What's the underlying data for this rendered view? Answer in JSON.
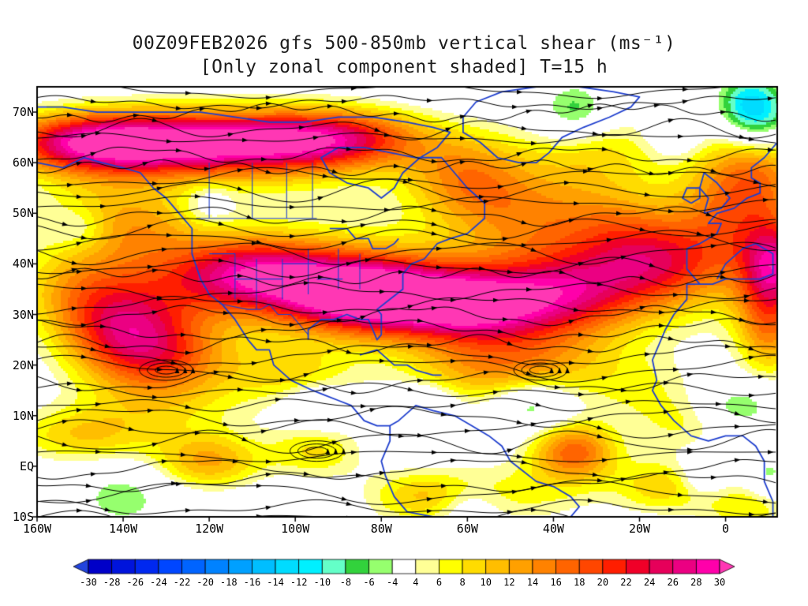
{
  "title": {
    "line1": "00Z09FEB2026 gfs 500-850mb vertical shear (ms⁻¹)",
    "line2": "[Only zonal component shaded] T=15 h"
  },
  "chart_data": {
    "type": "heatmap",
    "title": "00Z09FEB2026 gfs 500-850mb vertical shear (ms⁻¹)",
    "subtitle": "[Only zonal component shaded] T=15 h",
    "field": "500-850mb vertical shear, zonal component, ms⁻¹",
    "forecast_hour": "T=15 h",
    "lon_range": [
      -160,
      12
    ],
    "lat_range": [
      -10,
      75
    ],
    "x_tick_values": [
      -160,
      -140,
      -120,
      -100,
      -80,
      -60,
      -40,
      -20,
      0
    ],
    "x_tick_labels": [
      "160W",
      "140W",
      "120W",
      "100W",
      "80W",
      "60W",
      "40W",
      "20W",
      "0"
    ],
    "y_tick_values": [
      70,
      60,
      50,
      40,
      30,
      20,
      10,
      0,
      -10
    ],
    "y_tick_labels": [
      "70N",
      "60N",
      "50N",
      "40N",
      "30N",
      "20N",
      "10N",
      "EQ",
      "10S"
    ],
    "colorbar": {
      "levels": [
        -30,
        -28,
        -26,
        -24,
        -22,
        -20,
        -18,
        -16,
        -14,
        -12,
        -10,
        -8,
        -6,
        -4,
        4,
        6,
        8,
        10,
        12,
        14,
        16,
        18,
        20,
        22,
        24,
        26,
        28,
        30
      ],
      "segment_colors": [
        "#0000c8",
        "#0014dc",
        "#0028f0",
        "#0046ff",
        "#0064ff",
        "#0082ff",
        "#00a0ff",
        "#00beff",
        "#00dcff",
        "#00f0ff",
        "#64ffc8",
        "#32d23c",
        "#96ff6e",
        "#ffffff",
        "#ffff96",
        "#ffff00",
        "#ffdc00",
        "#ffbe00",
        "#ffa000",
        "#ff8200",
        "#ff6400",
        "#ff4600",
        "#ff1e00",
        "#f00028",
        "#e6005a",
        "#eb0082",
        "#ff00aa"
      ],
      "under_color": "#2244dd",
      "over_color": "#ff37b4"
    },
    "streamline_color": "#000000",
    "coastline_color": "#1f3fce",
    "border_color": "#000000",
    "features": [
      [
        -148,
        64,
        18,
        14,
        4
      ],
      [
        -120,
        64,
        20,
        22,
        4
      ],
      [
        -90,
        65,
        14,
        14,
        4
      ],
      [
        -118,
        63,
        12,
        30,
        6
      ],
      [
        -60,
        57,
        12,
        10,
        6
      ],
      [
        -30,
        62,
        8,
        12,
        6
      ],
      [
        2,
        50,
        14,
        10,
        9
      ],
      [
        8,
        60,
        10,
        8,
        6
      ],
      [
        -110,
        38,
        22,
        14,
        5
      ],
      [
        -85,
        34,
        28,
        13,
        5
      ],
      [
        -60,
        32,
        26,
        14,
        5
      ],
      [
        -35,
        35,
        16,
        12,
        6
      ],
      [
        -15,
        40,
        14,
        10,
        6
      ],
      [
        -75,
        36,
        8,
        55,
        10
      ],
      [
        -140,
        27,
        12,
        10,
        6
      ],
      [
        -150,
        35,
        8,
        10,
        6
      ],
      [
        -135,
        28,
        8,
        12,
        8
      ],
      [
        -130,
        21,
        10,
        12,
        5
      ],
      [
        -45,
        21,
        9,
        14,
        5
      ],
      [
        -100,
        18,
        7,
        10,
        4
      ],
      [
        -150,
        6,
        9,
        12,
        4
      ],
      [
        -120,
        1,
        12,
        9,
        4
      ],
      [
        -95,
        3,
        8,
        8,
        4
      ],
      [
        -70,
        -6,
        10,
        10,
        4
      ],
      [
        -35,
        3,
        16,
        7,
        4
      ],
      [
        -15,
        -4,
        9,
        8,
        4
      ],
      [
        5,
        -8,
        8,
        8,
        4
      ],
      [
        10,
        35,
        10,
        6,
        8
      ],
      [
        10,
        25,
        8,
        5,
        6
      ],
      [
        12,
        40,
        14,
        5,
        6
      ],
      [
        -145,
        50,
        6,
        12,
        6
      ],
      [
        -135,
        47,
        6,
        10,
        5
      ],
      [
        -45,
        50,
        9,
        12,
        6
      ],
      [
        -25,
        47,
        8,
        10,
        6
      ],
      [
        -130,
        12,
        6,
        15,
        5
      ],
      [
        -60,
        18,
        6,
        12,
        5
      ],
      [
        -20,
        15,
        5,
        10,
        5
      ],
      [
        -45,
        -5,
        6,
        12,
        5
      ],
      [
        -10,
        8,
        5,
        8,
        4
      ],
      [
        -45,
        12,
        -8,
        6,
        3
      ],
      [
        -95,
        12,
        -6,
        5,
        3
      ],
      [
        -70,
        13,
        -5,
        5,
        2.5
      ],
      [
        3,
        12,
        -7,
        6,
        3
      ],
      [
        -35,
        70,
        -9,
        6,
        4
      ],
      [
        -12,
        66,
        -6,
        4,
        3
      ],
      [
        8,
        68,
        -11,
        6,
        5
      ],
      [
        5,
        72,
        -8,
        5,
        4
      ],
      [
        -140,
        -6,
        -6,
        7,
        4
      ],
      [
        -60,
        -8,
        -5,
        5,
        3
      ],
      [
        -5,
        -2,
        -5,
        4,
        3
      ],
      [
        -150,
        47,
        -5,
        5,
        3
      ],
      [
        -120,
        52,
        -4,
        4,
        3
      ],
      [
        10,
        -2,
        -6,
        4,
        3
      ]
    ],
    "vortices": [
      [
        -130,
        19
      ],
      [
        -43,
        19
      ],
      [
        -95,
        3
      ]
    ],
    "coastlines": {
      "na_pacific": [
        [
          -166,
          62
        ],
        [
          -160,
          60
        ],
        [
          -154,
          59
        ],
        [
          -149,
          61
        ],
        [
          -145,
          60
        ],
        [
          -140,
          59
        ],
        [
          -136,
          58
        ],
        [
          -133,
          55
        ],
        [
          -130,
          53
        ],
        [
          -127,
          50
        ],
        [
          -124,
          47
        ],
        [
          -124,
          42
        ],
        [
          -122,
          37
        ],
        [
          -120,
          34
        ],
        [
          -117,
          32
        ],
        [
          -114,
          29
        ],
        [
          -111,
          25
        ],
        [
          -109,
          23
        ],
        [
          -106,
          23
        ],
        [
          -105,
          20
        ],
        [
          -101,
          17
        ],
        [
          -96,
          15
        ],
        [
          -93,
          14
        ],
        [
          -90,
          13
        ],
        [
          -87,
          12
        ],
        [
          -84,
          9
        ],
        [
          -81,
          8
        ],
        [
          -78,
          8
        ]
      ],
      "na_atlantic": [
        [
          -97,
          25
        ],
        [
          -97,
          27
        ],
        [
          -94,
          29
        ],
        [
          -91,
          29
        ],
        [
          -88,
          30
        ],
        [
          -85,
          29
        ],
        [
          -83,
          29
        ],
        [
          -82,
          27
        ],
        [
          -81,
          25
        ],
        [
          -80,
          26
        ],
        [
          -80,
          30
        ],
        [
          -81,
          31
        ],
        [
          -78,
          33
        ],
        [
          -75,
          35
        ],
        [
          -75,
          38
        ],
        [
          -73,
          40
        ],
        [
          -70,
          41
        ],
        [
          -67,
          44
        ],
        [
          -64,
          45
        ],
        [
          -60,
          46
        ],
        [
          -56,
          49
        ],
        [
          -56,
          52
        ],
        [
          -60,
          55
        ],
        [
          -63,
          58
        ],
        [
          -66,
          61
        ],
        [
          -72,
          61
        ],
        [
          -78,
          62
        ],
        [
          -84,
          63
        ],
        [
          -90,
          63
        ],
        [
          -94,
          61
        ],
        [
          -92,
          58
        ],
        [
          -88,
          56
        ],
        [
          -83,
          55
        ],
        [
          -80,
          53
        ],
        [
          -77,
          55
        ],
        [
          -75,
          58
        ],
        [
          -71,
          61
        ],
        [
          -67,
          63
        ],
        [
          -64,
          66
        ],
        [
          -68,
          67
        ],
        [
          -74,
          68
        ],
        [
          -82,
          69
        ],
        [
          -90,
          69
        ],
        [
          -98,
          68
        ],
        [
          -106,
          68
        ],
        [
          -114,
          69
        ],
        [
          -122,
          70
        ],
        [
          -130,
          70
        ],
        [
          -138,
          70
        ],
        [
          -146,
          70
        ],
        [
          -154,
          71
        ],
        [
          -160,
          71
        ]
      ],
      "great_lakes": [
        [
          -92,
          47
        ],
        [
          -88,
          47
        ],
        [
          -86,
          45
        ],
        [
          -83,
          45
        ],
        [
          -82,
          43
        ],
        [
          -79,
          43
        ],
        [
          -77,
          44
        ],
        [
          -76,
          45
        ]
      ],
      "greenland": [
        [
          -57,
          64
        ],
        [
          -53,
          61
        ],
        [
          -48,
          60
        ],
        [
          -44,
          60
        ],
        [
          -41,
          62
        ],
        [
          -38,
          65
        ],
        [
          -33,
          67
        ],
        [
          -27,
          69
        ],
        [
          -22,
          71
        ],
        [
          -20,
          73
        ],
        [
          -26,
          74
        ],
        [
          -34,
          75
        ],
        [
          -44,
          75
        ],
        [
          -52,
          74
        ],
        [
          -58,
          72
        ],
        [
          -61,
          69
        ],
        [
          -61,
          66
        ],
        [
          -57,
          64
        ]
      ],
      "cuba_hispaniola": [
        [
          -85,
          22
        ],
        [
          -81,
          23
        ],
        [
          -77,
          20
        ],
        [
          -74,
          20
        ],
        [
          -72,
          19
        ],
        [
          -68,
          18
        ],
        [
          -66,
          18
        ]
      ],
      "south_america": [
        [
          -78,
          8
        ],
        [
          -76,
          9
        ],
        [
          -72,
          12
        ],
        [
          -68,
          11
        ],
        [
          -63,
          10
        ],
        [
          -59,
          8
        ],
        [
          -55,
          6
        ],
        [
          -52,
          4
        ],
        [
          -50,
          1
        ],
        [
          -47,
          -1
        ],
        [
          -44,
          -3
        ],
        [
          -40,
          -4
        ],
        [
          -36,
          -6
        ],
        [
          -34,
          -8
        ],
        [
          -36,
          -10
        ],
        [
          -44,
          -10
        ],
        [
          -52,
          -10
        ],
        [
          -60,
          -10
        ],
        [
          -68,
          -10
        ],
        [
          -74,
          -9
        ],
        [
          -77,
          -6
        ],
        [
          -79,
          -2
        ],
        [
          -80,
          1
        ],
        [
          -78,
          5
        ],
        [
          -78,
          8
        ]
      ],
      "europe_mainland": [
        [
          -9,
          43
        ],
        [
          -6,
          44
        ],
        [
          -2,
          46
        ],
        [
          -1,
          48
        ],
        [
          -4,
          48
        ],
        [
          -2,
          50
        ],
        [
          2,
          51
        ],
        [
          5,
          53
        ],
        [
          8,
          54
        ],
        [
          8,
          56
        ],
        [
          6,
          57
        ],
        [
          6,
          59
        ],
        [
          9,
          61
        ],
        [
          12,
          64
        ],
        [
          12,
          66
        ]
      ],
      "uk": [
        [
          -5,
          50
        ],
        [
          -1,
          51
        ],
        [
          1,
          53
        ],
        [
          -2,
          56
        ],
        [
          -5,
          58
        ],
        [
          -6,
          55
        ],
        [
          -4,
          53
        ],
        [
          -5,
          50
        ]
      ],
      "ireland": [
        [
          -8,
          52
        ],
        [
          -10,
          53
        ],
        [
          -9,
          55
        ],
        [
          -6,
          55
        ],
        [
          -6,
          53
        ],
        [
          -8,
          52
        ]
      ],
      "iberia_africa": [
        [
          -9,
          43
        ],
        [
          -9,
          39
        ],
        [
          -7,
          37
        ],
        [
          -6,
          36
        ],
        [
          -9,
          36
        ],
        [
          -9,
          33
        ],
        [
          -12,
          30
        ],
        [
          -14,
          27
        ],
        [
          -16,
          23
        ],
        [
          -17,
          21
        ],
        [
          -16,
          17
        ],
        [
          -17,
          15
        ],
        [
          -15,
          12
        ],
        [
          -12,
          9
        ],
        [
          -8,
          6
        ],
        [
          -4,
          5
        ],
        [
          0,
          6
        ],
        [
          4,
          6
        ],
        [
          7,
          4
        ],
        [
          9,
          1
        ],
        [
          9,
          -3
        ],
        [
          11,
          -7
        ],
        [
          11,
          -10
        ]
      ],
      "mediterranean": [
        [
          -6,
          36
        ],
        [
          -3,
          36
        ],
        [
          0,
          37
        ],
        [
          4,
          37
        ],
        [
          8,
          37
        ],
        [
          11,
          38
        ],
        [
          11,
          42
        ],
        [
          7,
          44
        ],
        [
          4,
          43
        ],
        [
          0,
          40
        ],
        [
          -2,
          37
        ]
      ]
    },
    "borders": [
      [
        [
          -123,
          49
        ],
        [
          -95,
          49
        ]
      ],
      [
        [
          -117,
          32
        ],
        [
          -111,
          31
        ],
        [
          -108,
          31
        ],
        [
          -106,
          32
        ],
        [
          -104,
          30
        ],
        [
          -101,
          30
        ],
        [
          -99,
          28
        ],
        [
          -97,
          26
        ]
      ],
      [
        [
          -114,
          42
        ],
        [
          -114,
          33
        ]
      ],
      [
        [
          -109,
          41
        ],
        [
          -109,
          31
        ]
      ],
      [
        [
          -103,
          41
        ],
        [
          -103,
          33
        ]
      ],
      [
        [
          -97,
          43
        ],
        [
          -97,
          34
        ]
      ],
      [
        [
          -90,
          43
        ],
        [
          -90,
          35
        ]
      ],
      [
        [
          -85,
          42
        ],
        [
          -85,
          35
        ]
      ],
      [
        [
          -120,
          42
        ],
        [
          -114,
          42
        ]
      ],
      [
        [
          -114,
          37
        ],
        [
          -103,
          37
        ]
      ],
      [
        [
          -103,
          40
        ],
        [
          -95,
          40
        ]
      ],
      [
        [
          -95,
          37
        ],
        [
          -89,
          37
        ]
      ],
      [
        [
          -120,
          60
        ],
        [
          -120,
          49
        ]
      ],
      [
        [
          -110,
          60
        ],
        [
          -110,
          49
        ]
      ],
      [
        [
          -102,
          60
        ],
        [
          -102,
          49
        ]
      ],
      [
        [
          -96,
          60
        ],
        [
          -96,
          49
        ]
      ]
    ]
  }
}
